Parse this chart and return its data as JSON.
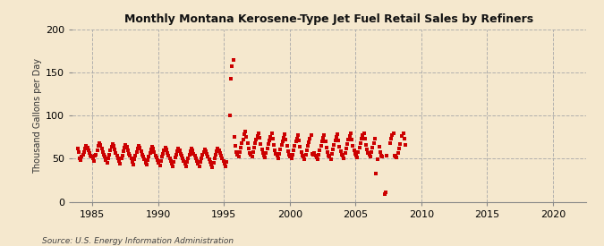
{
  "title": "Monthly Montana Kerosene-Type Jet Fuel Retail Sales by Refiners",
  "ylabel": "Thousand Gallons per Day",
  "source": "Source: U.S. Energy Information Administration",
  "background_color": "#f5e8ce",
  "plot_bg_color": "#f5e8ce",
  "dot_color": "#cc0000",
  "dot_size": 7,
  "xlim": [
    1983.5,
    2022.5
  ],
  "ylim": [
    0,
    200
  ],
  "yticks": [
    0,
    50,
    100,
    150,
    200
  ],
  "xticks": [
    1985,
    1990,
    1995,
    2000,
    2005,
    2010,
    2015,
    2020
  ],
  "dates": [
    1983.88,
    1983.96,
    1984.04,
    1984.13,
    1984.21,
    1984.29,
    1984.38,
    1984.46,
    1984.54,
    1984.63,
    1984.71,
    1984.79,
    1984.88,
    1984.96,
    1985.04,
    1985.13,
    1985.21,
    1985.29,
    1985.38,
    1985.46,
    1985.54,
    1985.63,
    1985.71,
    1985.79,
    1985.88,
    1985.96,
    1986.04,
    1986.13,
    1986.21,
    1986.29,
    1986.38,
    1986.46,
    1986.54,
    1986.63,
    1986.71,
    1986.79,
    1986.88,
    1986.96,
    1987.04,
    1987.13,
    1987.21,
    1987.29,
    1987.38,
    1987.46,
    1987.54,
    1987.63,
    1987.71,
    1987.79,
    1987.88,
    1987.96,
    1988.04,
    1988.13,
    1988.21,
    1988.29,
    1988.38,
    1988.46,
    1988.54,
    1988.63,
    1988.71,
    1988.79,
    1988.88,
    1988.96,
    1989.04,
    1989.13,
    1989.21,
    1989.29,
    1989.38,
    1989.46,
    1989.54,
    1989.63,
    1989.71,
    1989.79,
    1989.88,
    1989.96,
    1990.04,
    1990.13,
    1990.21,
    1990.29,
    1990.38,
    1990.46,
    1990.54,
    1990.63,
    1990.71,
    1990.79,
    1990.88,
    1990.96,
    1991.04,
    1991.13,
    1991.21,
    1991.29,
    1991.38,
    1991.46,
    1991.54,
    1991.63,
    1991.71,
    1991.79,
    1991.88,
    1991.96,
    1992.04,
    1992.13,
    1992.21,
    1992.29,
    1992.38,
    1992.46,
    1992.54,
    1992.63,
    1992.71,
    1992.79,
    1992.88,
    1992.96,
    1993.04,
    1993.13,
    1993.21,
    1993.29,
    1993.38,
    1993.46,
    1993.54,
    1993.63,
    1993.71,
    1993.79,
    1993.88,
    1993.96,
    1994.04,
    1994.13,
    1994.21,
    1994.29,
    1994.38,
    1994.46,
    1994.54,
    1994.63,
    1994.71,
    1994.79,
    1994.88,
    1994.96,
    1995.04,
    1995.13,
    1995.21,
    1995.46,
    1995.54,
    1995.63,
    1995.71,
    1995.79,
    1995.88,
    1995.96,
    1996.04,
    1996.13,
    1996.21,
    1996.29,
    1996.38,
    1996.46,
    1996.54,
    1996.63,
    1996.71,
    1996.79,
    1996.88,
    1996.96,
    1997.04,
    1997.13,
    1997.21,
    1997.29,
    1997.38,
    1997.46,
    1997.54,
    1997.63,
    1997.71,
    1997.79,
    1997.88,
    1997.96,
    1998.04,
    1998.13,
    1998.21,
    1998.29,
    1998.38,
    1998.46,
    1998.54,
    1998.63,
    1998.71,
    1998.79,
    1998.88,
    1998.96,
    1999.04,
    1999.13,
    1999.21,
    1999.29,
    1999.38,
    1999.46,
    1999.54,
    1999.63,
    1999.71,
    1999.79,
    1999.88,
    1999.96,
    2000.04,
    2000.13,
    2000.21,
    2000.29,
    2000.38,
    2000.46,
    2000.54,
    2000.63,
    2000.71,
    2000.79,
    2000.88,
    2000.96,
    2001.04,
    2001.13,
    2001.21,
    2001.29,
    2001.38,
    2001.46,
    2001.54,
    2001.63,
    2001.71,
    2001.79,
    2001.88,
    2001.96,
    2002.04,
    2002.13,
    2002.21,
    2002.29,
    2002.38,
    2002.46,
    2002.54,
    2002.63,
    2002.71,
    2002.79,
    2002.88,
    2002.96,
    2003.04,
    2003.13,
    2003.21,
    2003.29,
    2003.38,
    2003.46,
    2003.54,
    2003.63,
    2003.71,
    2003.79,
    2003.88,
    2003.96,
    2004.04,
    2004.13,
    2004.21,
    2004.29,
    2004.38,
    2004.46,
    2004.54,
    2004.63,
    2004.71,
    2004.79,
    2004.88,
    2004.96,
    2005.04,
    2005.13,
    2005.21,
    2005.29,
    2005.38,
    2005.46,
    2005.54,
    2005.63,
    2005.71,
    2005.79,
    2005.88,
    2005.96,
    2006.04,
    2006.13,
    2006.21,
    2006.29,
    2006.38,
    2006.46,
    2006.54,
    2006.71,
    2006.79,
    2006.88,
    2006.96,
    2007.04,
    2007.21,
    2007.29,
    2007.38,
    2007.63,
    2007.71,
    2007.79,
    2007.88,
    2007.96,
    2008.04,
    2008.13,
    2008.21,
    2008.29,
    2008.38,
    2008.54,
    2008.63,
    2008.71,
    2008.79
  ],
  "values": [
    62,
    58,
    50,
    48,
    52,
    55,
    58,
    62,
    65,
    63,
    60,
    57,
    54,
    52,
    50,
    47,
    53,
    55,
    60,
    65,
    68,
    66,
    62,
    58,
    55,
    52,
    48,
    45,
    50,
    55,
    60,
    64,
    67,
    65,
    61,
    57,
    54,
    50,
    47,
    44,
    50,
    54,
    59,
    63,
    66,
    64,
    60,
    56,
    53,
    50,
    46,
    43,
    49,
    53,
    58,
    62,
    65,
    63,
    59,
    55,
    52,
    49,
    45,
    43,
    48,
    52,
    57,
    61,
    64,
    62,
    58,
    54,
    51,
    48,
    45,
    42,
    47,
    52,
    56,
    60,
    63,
    61,
    57,
    54,
    50,
    47,
    44,
    41,
    46,
    51,
    55,
    59,
    62,
    60,
    56,
    53,
    50,
    47,
    44,
    41,
    46,
    50,
    55,
    59,
    62,
    60,
    56,
    53,
    50,
    47,
    44,
    41,
    46,
    50,
    55,
    58,
    61,
    59,
    56,
    52,
    49,
    46,
    43,
    40,
    45,
    50,
    55,
    59,
    62,
    60,
    57,
    53,
    50,
    47,
    44,
    41,
    46,
    100,
    143,
    157,
    165,
    75,
    65,
    58,
    55,
    52,
    58,
    63,
    68,
    72,
    78,
    82,
    75,
    68,
    62,
    57,
    55,
    52,
    58,
    63,
    68,
    72,
    76,
    80,
    74,
    67,
    61,
    57,
    54,
    51,
    57,
    62,
    67,
    71,
    75,
    79,
    73,
    66,
    60,
    56,
    53,
    50,
    56,
    61,
    66,
    70,
    74,
    78,
    72,
    65,
    59,
    55,
    52,
    50,
    55,
    60,
    65,
    70,
    73,
    77,
    71,
    64,
    58,
    54,
    52,
    49,
    55,
    60,
    65,
    69,
    73,
    77,
    56,
    55,
    57,
    53,
    51,
    49,
    55,
    60,
    65,
    70,
    74,
    77,
    70,
    63,
    58,
    54,
    52,
    49,
    56,
    61,
    66,
    71,
    75,
    78,
    71,
    64,
    59,
    55,
    53,
    50,
    57,
    62,
    67,
    72,
    76,
    79,
    72,
    65,
    60,
    56,
    54,
    51,
    58,
    63,
    68,
    73,
    77,
    80,
    73,
    66,
    61,
    57,
    55,
    52,
    58,
    63,
    68,
    73,
    33,
    49,
    64,
    58,
    54,
    52,
    9,
    11,
    53,
    68,
    73,
    77,
    80,
    53,
    52,
    51,
    57,
    62,
    67,
    76,
    79,
    73,
    66
  ]
}
